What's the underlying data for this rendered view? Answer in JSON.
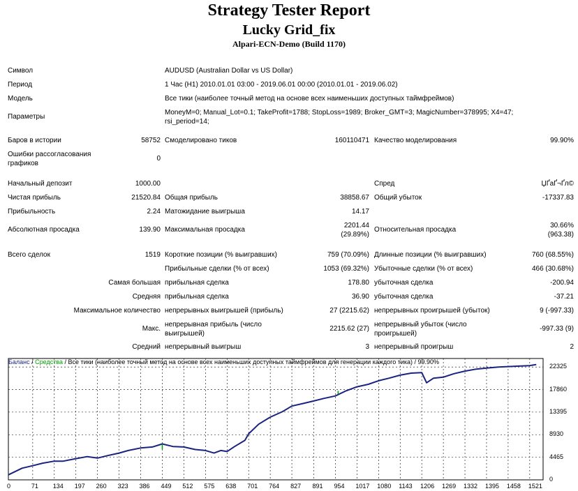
{
  "header": {
    "title": "Strategy Tester Report",
    "ea_name": "Lucky Grid_fix",
    "broker": "Alpari-ECN-Demo (Build 1170)"
  },
  "info": {
    "symbol_label": "Символ",
    "symbol_value": "AUDUSD (Australian Dollar vs US Dollar)",
    "period_label": "Период",
    "period_value": "1 Час (H1) 2010.01.01 03:00 - 2019.06.01 00:00 (2010.01.01 - 2019.06.02)",
    "model_label": "Модель",
    "model_value": "Все тики (наиболее точный метод на основе всех наименьших доступных таймфреймов)",
    "params_label": "Параметры",
    "params_value_1": "MoneyM=0; Manual_Lot=0.1; TakeProfit=1788; StopLoss=1989; Broker_GMT=3; MagicNumber=378995; X4=47;",
    "params_value_2": "rsi_period=14;"
  },
  "stats": {
    "bars_label": "Баров в истории",
    "bars_value": "58752",
    "ticks_label": "Смоделировано тиков",
    "ticks_value": "160110471",
    "quality_label": "Качество моделирования",
    "quality_value": "99.90%",
    "mismatch_label": "Ошибки рассогласования графиков",
    "mismatch_value": "0",
    "deposit_label": "Начальный депозит",
    "deposit_value": "1000.00",
    "spread_label": "Спред",
    "spread_value": "ЏҐаҐ¬Ґ­­л©",
    "net_label": "Чистая прибыль",
    "net_value": "21520.84",
    "gross_profit_label": "Общая прибыль",
    "gross_profit_value": "38858.67",
    "gross_loss_label": "Общий убыток",
    "gross_loss_value": "-17337.83",
    "pf_label": "Прибыльность",
    "pf_value": "2.24",
    "expect_label": "Матожидание выигрыша",
    "expect_value": "14.17",
    "abs_dd_label": "Абсолютная просадка",
    "abs_dd_value": "139.90",
    "max_dd_label": "Максимальная просадка",
    "max_dd_value_1": "2201.44",
    "max_dd_value_2": "(29.89%)",
    "rel_dd_label": "Относительная просадка",
    "rel_dd_value_1": "30.66%",
    "rel_dd_value_2": "(963.38)",
    "trades_label": "Всего сделок",
    "trades_value": "1519",
    "short_label": "Короткие позиции (% выигравших)",
    "short_value": "759 (70.09%)",
    "long_label": "Длинные позиции (% выигравших)",
    "long_value": "760 (68.55%)",
    "profit_trades_label": "Прибыльные сделки (% от всех)",
    "profit_trades_value": "1053 (69.32%)",
    "loss_trades_label": "Убыточные сделки (% от всех)",
    "loss_trades_value": "466 (30.68%)",
    "largest_label": "Самая большая",
    "largest_profit_label": "прибыльная сделка",
    "largest_profit_value": "178.80",
    "largest_loss_label": "убыточная сделка",
    "largest_loss_value": "-200.94",
    "average_label": "Средняя",
    "avg_profit_label": "прибыльная сделка",
    "avg_profit_value": "36.90",
    "avg_loss_label": "убыточная сделка",
    "avg_loss_value": "-37.21",
    "maxcount_label": "Максимальное количество",
    "maxcount_wins_label": "непрерывных выигрышей (прибыль)",
    "maxcount_wins_value": "27 (2215.62)",
    "maxcount_losses_label": "непрерывных проигрышей (убыток)",
    "maxcount_losses_value": "9 (-997.33)",
    "max_label": "Макс.",
    "max_profit_label": "непрерывная прибыль (число выигрышей)",
    "max_profit_value": "2215.62 (27)",
    "max_loss_label": "непрерывный убыток (число проигрышей)",
    "max_loss_value": "-997.33 (9)",
    "avgcons_label": "Средний",
    "avgcons_win_label": "непрерывный выигрыш",
    "avgcons_win_value": "3",
    "avgcons_loss_label": "непрерывный проигрыш",
    "avgcons_loss_value": "2"
  },
  "chart_caption": {
    "balance": "Баланс",
    "sep1": " / ",
    "equity": "Средства",
    "rest": " / Все тики (наиболее точный метод на основе всех наименьших доступных таймфреймов для генерации каждого тика) / 99.90%"
  },
  "colors": {
    "balance": "#1a237e",
    "equity": "#00a000",
    "axis": "#000000"
  },
  "chart_data": {
    "type": "line",
    "title": "",
    "xlabel": "",
    "ylabel": "",
    "xlim": [
      0,
      1560
    ],
    "ylim": [
      0,
      24000
    ],
    "x_ticks": [
      0,
      71,
      134,
      197,
      260,
      323,
      386,
      449,
      512,
      575,
      638,
      701,
      764,
      827,
      891,
      954,
      1017,
      1080,
      1143,
      1206,
      1269,
      1332,
      1395,
      1458,
      1521
    ],
    "y_ticks": [
      0,
      4465,
      8930,
      13395,
      17860,
      22325
    ],
    "legend_position": "top-left",
    "series": [
      {
        "name": "Баланс",
        "x": [
          0,
          40,
          71,
          100,
          134,
          160,
          197,
          230,
          260,
          290,
          323,
          350,
          386,
          420,
          449,
          480,
          512,
          545,
          575,
          600,
          620,
          638,
          660,
          690,
          701,
          730,
          764,
          800,
          827,
          860,
          891,
          920,
          954,
          985,
          1017,
          1050,
          1080,
          1110,
          1143,
          1175,
          1206,
          1220,
          1240,
          1269,
          1300,
          1332,
          1365,
          1395,
          1430,
          1458,
          1490,
          1521,
          1540
        ],
        "y": [
          1000,
          2300,
          2800,
          3300,
          3700,
          3700,
          4200,
          4600,
          4300,
          4800,
          5300,
          5800,
          6300,
          6500,
          7100,
          6600,
          6500,
          6000,
          5800,
          5300,
          5800,
          5600,
          6600,
          7800,
          9100,
          11000,
          12400,
          13500,
          14600,
          15100,
          15600,
          16100,
          16600,
          17600,
          18400,
          18900,
          19600,
          20100,
          20700,
          21100,
          21200,
          19200,
          20100,
          20300,
          21000,
          21500,
          21900,
          22100,
          22300,
          22400,
          22500,
          22600,
          22800
        ]
      },
      {
        "name": "Средства",
        "x": [
          449,
          449,
          962,
          962
        ],
        "y": [
          7100,
          6000,
          16900,
          17600
        ]
      }
    ]
  }
}
